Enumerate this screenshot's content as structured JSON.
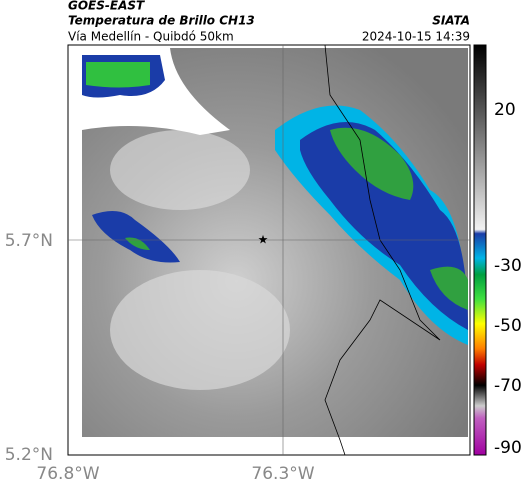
{
  "header": {
    "satellite": "GOES-EAST",
    "product": "Temperatura de Brillo CH13",
    "source": "SIATA",
    "route": "Vía Medellín - Quibdó 50km",
    "datetime": "2024-10-15 14:39"
  },
  "map": {
    "lat_labels": [
      "5.7°N",
      "5.2°N"
    ],
    "lon_labels": [
      "76.8°W",
      "76.3°W"
    ]
  },
  "colorbar": {
    "ticks": [
      "20",
      "-30",
      "-50",
      "-70",
      "-90"
    ]
  }
}
